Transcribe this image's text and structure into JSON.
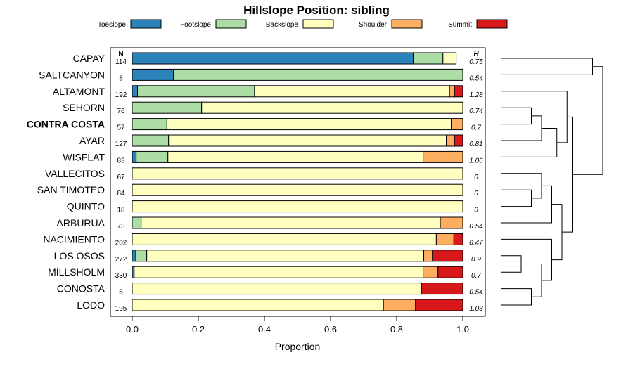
{
  "chart_data": {
    "type": "bar",
    "orientation": "horizontal",
    "stacked": true,
    "title": "Hillslope Position: sibling",
    "xlabel": "Proportion",
    "ylabel": "",
    "xlim": [
      0,
      1
    ],
    "x_ticks": [
      "0.0",
      "0.2",
      "0.4",
      "0.6",
      "0.8",
      "1.0"
    ],
    "legend": {
      "placement": "top",
      "entries": [
        {
          "name": "Toeslope",
          "color": "#2B83BA"
        },
        {
          "name": "Footslope",
          "color": "#ABDDA4"
        },
        {
          "name": "Backslope",
          "color": "#FFFFBF"
        },
        {
          "name": "Shoulder",
          "color": "#FDAE61"
        },
        {
          "name": "Summit",
          "color": "#D7191C"
        }
      ]
    },
    "n_header": "N",
    "h_header": "H",
    "highlight": "CONTRA COSTA",
    "rows": [
      {
        "name": "CAPAY",
        "n": "114",
        "h": "0.75",
        "values": [
          0.85,
          0.09,
          0.04,
          0.0,
          0.0
        ]
      },
      {
        "name": "SALTCANYON",
        "n": "8",
        "h": "0.54",
        "values": [
          0.125,
          0.875,
          0.0,
          0.0,
          0.0
        ]
      },
      {
        "name": "ALTAMONT",
        "n": "192",
        "h": "1.28",
        "values": [
          0.016,
          0.354,
          0.59,
          0.015,
          0.025
        ]
      },
      {
        "name": "SEHORN",
        "n": "76",
        "h": "0.74",
        "values": [
          0.0,
          0.21,
          0.79,
          0.0,
          0.0
        ]
      },
      {
        "name": "CONTRA COSTA",
        "n": "57",
        "h": "0.7",
        "values": [
          0.0,
          0.105,
          0.86,
          0.035,
          0.0
        ]
      },
      {
        "name": "AYAR",
        "n": "127",
        "h": "0.81",
        "values": [
          0.0,
          0.11,
          0.84,
          0.025,
          0.025
        ]
      },
      {
        "name": "WISFLAT",
        "n": "83",
        "h": "1.06",
        "values": [
          0.012,
          0.096,
          0.772,
          0.12,
          0.0
        ]
      },
      {
        "name": "VALLECITOS",
        "n": "67",
        "h": "0",
        "values": [
          0.0,
          0.0,
          1.0,
          0.0,
          0.0
        ]
      },
      {
        "name": "SAN TIMOTEO",
        "n": "84",
        "h": "0",
        "values": [
          0.0,
          0.0,
          1.0,
          0.0,
          0.0
        ]
      },
      {
        "name": "QUINTO",
        "n": "18",
        "h": "0",
        "values": [
          0.0,
          0.0,
          1.0,
          0.0,
          0.0
        ]
      },
      {
        "name": "ARBURUA",
        "n": "73",
        "h": "0.54",
        "values": [
          0.0,
          0.027,
          0.905,
          0.068,
          0.0
        ]
      },
      {
        "name": "NACIMIENTO",
        "n": "202",
        "h": "0.47",
        "values": [
          0.0,
          0.0,
          0.92,
          0.053,
          0.027
        ]
      },
      {
        "name": "LOS OSOS",
        "n": "272",
        "h": "0.9",
        "values": [
          0.011,
          0.033,
          0.838,
          0.026,
          0.092
        ]
      },
      {
        "name": "MILLSHOLM",
        "n": "330",
        "h": "0.7",
        "values": [
          0.006,
          0.0,
          0.874,
          0.045,
          0.075
        ]
      },
      {
        "name": "CONOSTA",
        "n": "8",
        "h": "0.54",
        "values": [
          0.0,
          0.0,
          0.875,
          0.0,
          0.125
        ]
      },
      {
        "name": "LODO",
        "n": "195",
        "h": "1.03",
        "values": [
          0.0,
          0.0,
          0.76,
          0.097,
          0.143
        ]
      }
    ],
    "dendrogram": {
      "merges": [
        [
          0,
          1,
          0.9
        ],
        [
          3,
          4,
          0.3
        ],
        [
          17,
          5,
          0.4
        ],
        [
          18,
          6,
          0.55
        ],
        [
          19,
          2,
          0.65
        ],
        [
          8,
          9,
          0.3
        ],
        [
          21,
          7,
          0.4
        ],
        [
          22,
          10,
          0.5
        ],
        [
          12,
          13,
          0.2
        ],
        [
          14,
          15,
          0.3
        ],
        [
          24,
          25,
          0.4
        ],
        [
          26,
          11,
          0.5
        ],
        [
          23,
          27,
          0.6
        ],
        [
          20,
          28,
          0.7
        ],
        [
          16,
          29,
          1.0
        ]
      ]
    }
  }
}
